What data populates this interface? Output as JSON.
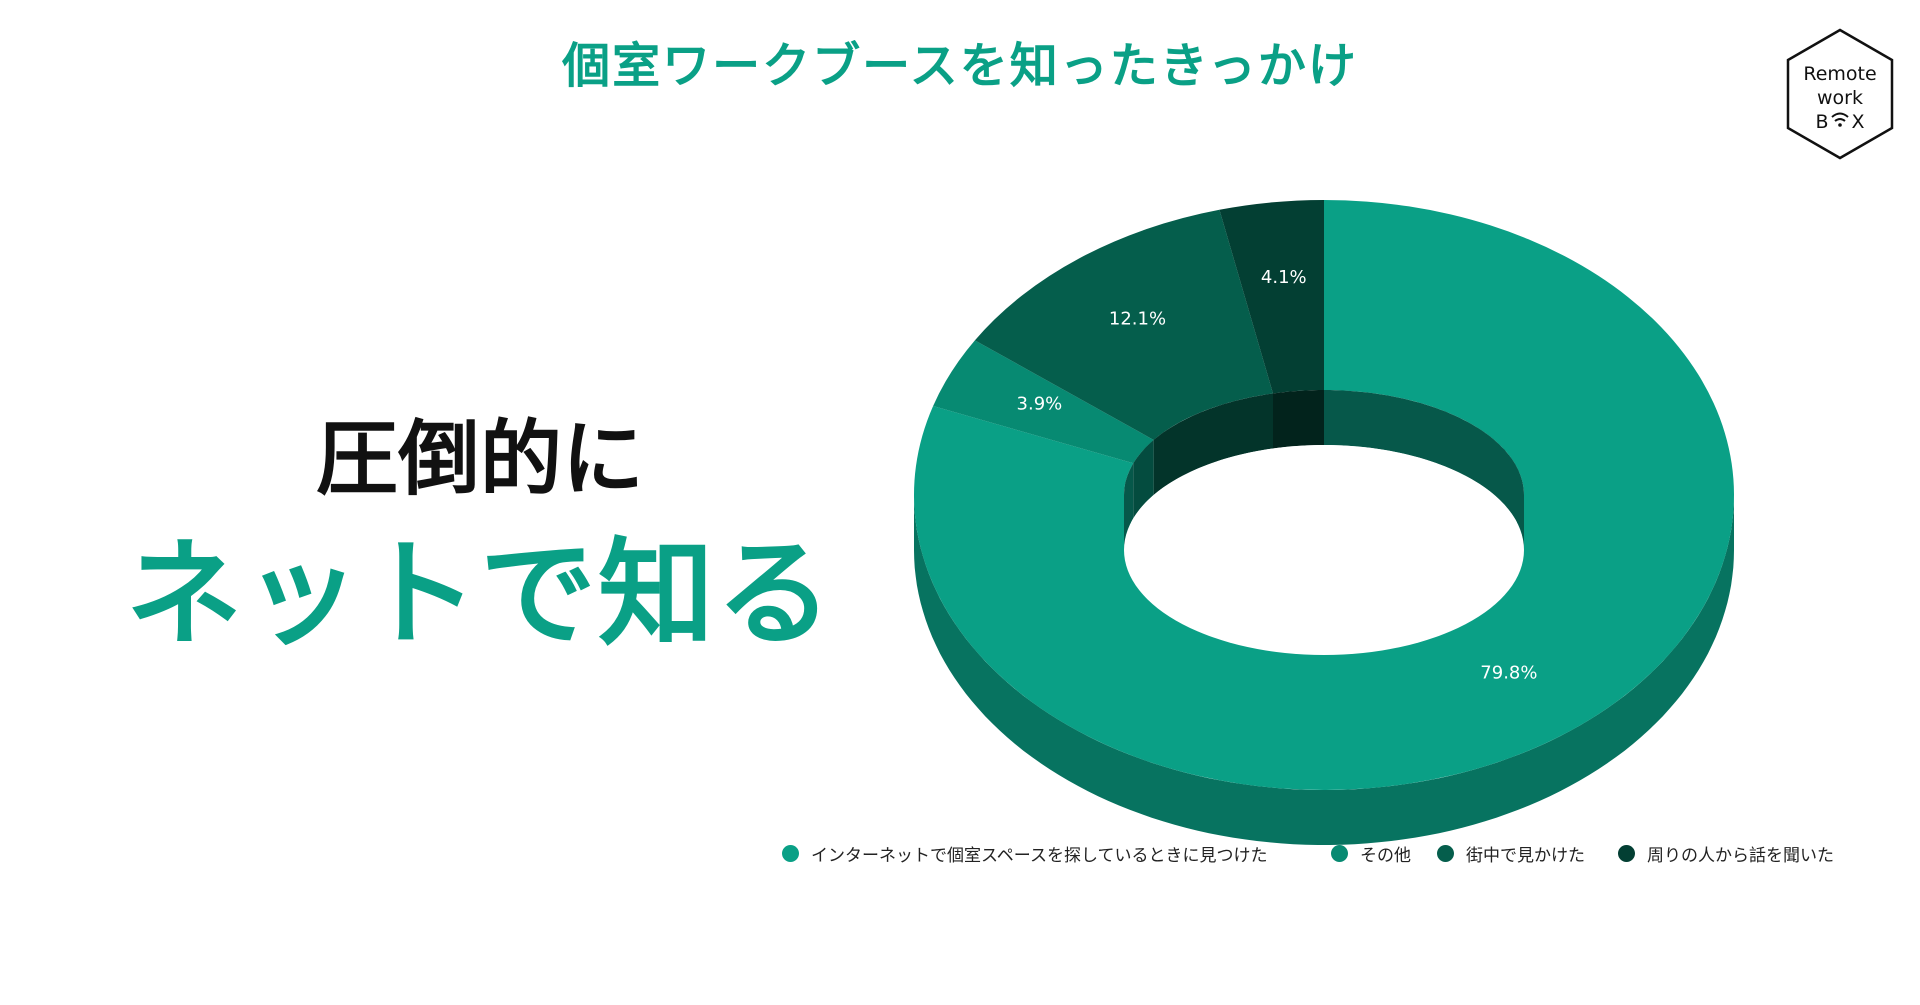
{
  "page": {
    "title": "個室ワークブースを知ったきっかけ",
    "headline_line1": "圧倒的に",
    "headline_line2": "ネットで知る",
    "logo": {
      "line1": "Remote",
      "line2": "work",
      "line3_b": "B",
      "line3_x": "X",
      "icon": "wifi-icon"
    }
  },
  "chart_data": {
    "type": "pie",
    "style": "3d-donut",
    "legend_position": "bottom",
    "categories": [
      "インターネットで個室スペースを探しているときに見つけた",
      "その他",
      "街中で見かけた",
      "周りの人から話を聞いた"
    ],
    "values": [
      79.8,
      3.9,
      12.1,
      4.1
    ],
    "data_labels": [
      "79.8%",
      "3.9%",
      "12.1%",
      "4.1%"
    ],
    "colors": [
      "#0aa086",
      "#078a72",
      "#055e4c",
      "#033f33"
    ]
  }
}
